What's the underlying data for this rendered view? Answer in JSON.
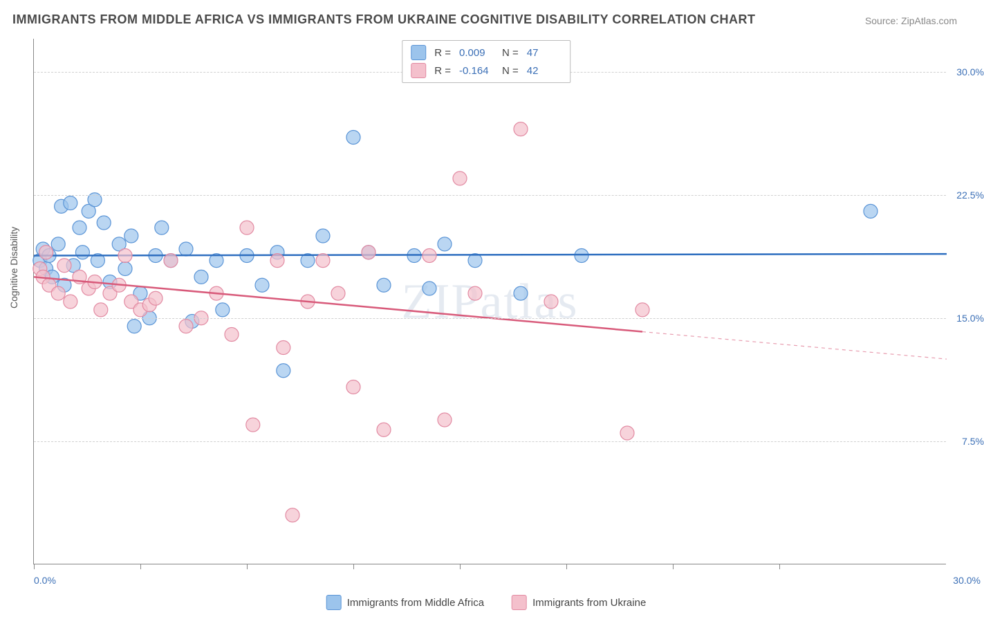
{
  "title": "IMMIGRANTS FROM MIDDLE AFRICA VS IMMIGRANTS FROM UKRAINE COGNITIVE DISABILITY CORRELATION CHART",
  "source": "Source: ZipAtlas.com",
  "watermark": "ZIPatlas",
  "y_axis_label": "Cognitive Disability",
  "chart": {
    "type": "scatter",
    "xlim": [
      0,
      30
    ],
    "ylim": [
      0,
      32
    ],
    "y_ticks": [
      7.5,
      15.0,
      22.5,
      30.0
    ],
    "y_tick_labels": [
      "7.5%",
      "15.0%",
      "22.5%",
      "30.0%"
    ],
    "x_ticks": [
      0,
      3.5,
      7,
      10.5,
      14,
      17.5,
      21,
      24.5
    ],
    "x_min_label": "0.0%",
    "x_max_label": "30.0%",
    "background_color": "#ffffff",
    "grid_color": "#d0d0d0",
    "axis_color": "#888888",
    "series": [
      {
        "name": "Immigrants from Middle Africa",
        "marker_fill": "#9cc4ec",
        "marker_stroke": "#5a94d6",
        "marker_opacity": 0.7,
        "marker_radius": 10,
        "line_color": "#2f6fc0",
        "line_width": 2.5,
        "r_value": "0.009",
        "n_value": "47",
        "regression": {
          "x1": 0,
          "y1": 18.8,
          "x2": 30,
          "y2": 18.9,
          "solid_until": 30
        },
        "points": [
          [
            0.2,
            18.5
          ],
          [
            0.3,
            19.2
          ],
          [
            0.4,
            18.0
          ],
          [
            0.5,
            18.8
          ],
          [
            0.6,
            17.5
          ],
          [
            0.8,
            19.5
          ],
          [
            0.9,
            21.8
          ],
          [
            1.0,
            17.0
          ],
          [
            1.2,
            22.0
          ],
          [
            1.3,
            18.2
          ],
          [
            1.5,
            20.5
          ],
          [
            1.6,
            19.0
          ],
          [
            1.8,
            21.5
          ],
          [
            2.0,
            22.2
          ],
          [
            2.1,
            18.5
          ],
          [
            2.3,
            20.8
          ],
          [
            2.5,
            17.2
          ],
          [
            2.8,
            19.5
          ],
          [
            3.0,
            18.0
          ],
          [
            3.2,
            20.0
          ],
          [
            3.3,
            14.5
          ],
          [
            3.5,
            16.5
          ],
          [
            3.8,
            15.0
          ],
          [
            4.0,
            18.8
          ],
          [
            4.2,
            20.5
          ],
          [
            4.5,
            18.5
          ],
          [
            5.0,
            19.2
          ],
          [
            5.2,
            14.8
          ],
          [
            5.5,
            17.5
          ],
          [
            6.0,
            18.5
          ],
          [
            6.2,
            15.5
          ],
          [
            7.0,
            18.8
          ],
          [
            7.5,
            17.0
          ],
          [
            8.0,
            19.0
          ],
          [
            8.2,
            11.8
          ],
          [
            9.0,
            18.5
          ],
          [
            9.5,
            20.0
          ],
          [
            10.5,
            26.0
          ],
          [
            11.0,
            19.0
          ],
          [
            11.5,
            17.0
          ],
          [
            12.5,
            18.8
          ],
          [
            13.0,
            16.8
          ],
          [
            13.5,
            19.5
          ],
          [
            14.5,
            18.5
          ],
          [
            16.0,
            16.5
          ],
          [
            18.0,
            18.8
          ],
          [
            27.5,
            21.5
          ]
        ]
      },
      {
        "name": "Immigrants from Ukraine",
        "marker_fill": "#f4c0cc",
        "marker_stroke": "#e28aa2",
        "marker_opacity": 0.7,
        "marker_radius": 10,
        "line_color": "#d85a7a",
        "line_width": 2.5,
        "r_value": "-0.164",
        "n_value": "42",
        "regression": {
          "x1": 0,
          "y1": 17.5,
          "x2": 30,
          "y2": 12.5,
          "solid_until": 20
        },
        "points": [
          [
            0.2,
            18.0
          ],
          [
            0.3,
            17.5
          ],
          [
            0.4,
            19.0
          ],
          [
            0.5,
            17.0
          ],
          [
            0.8,
            16.5
          ],
          [
            1.0,
            18.2
          ],
          [
            1.2,
            16.0
          ],
          [
            1.5,
            17.5
          ],
          [
            1.8,
            16.8
          ],
          [
            2.0,
            17.2
          ],
          [
            2.2,
            15.5
          ],
          [
            2.5,
            16.5
          ],
          [
            2.8,
            17.0
          ],
          [
            3.0,
            18.8
          ],
          [
            3.2,
            16.0
          ],
          [
            3.5,
            15.5
          ],
          [
            3.8,
            15.8
          ],
          [
            4.0,
            16.2
          ],
          [
            4.5,
            18.5
          ],
          [
            5.0,
            14.5
          ],
          [
            5.5,
            15.0
          ],
          [
            6.0,
            16.5
          ],
          [
            6.5,
            14.0
          ],
          [
            7.0,
            20.5
          ],
          [
            7.2,
            8.5
          ],
          [
            8.0,
            18.5
          ],
          [
            8.2,
            13.2
          ],
          [
            8.5,
            3.0
          ],
          [
            9.0,
            16.0
          ],
          [
            9.5,
            18.5
          ],
          [
            10.0,
            16.5
          ],
          [
            10.5,
            10.8
          ],
          [
            11.0,
            19.0
          ],
          [
            11.5,
            8.2
          ],
          [
            13.0,
            18.8
          ],
          [
            13.5,
            8.8
          ],
          [
            14.0,
            23.5
          ],
          [
            14.5,
            16.5
          ],
          [
            16.0,
            26.5
          ],
          [
            17.0,
            16.0
          ],
          [
            19.5,
            8.0
          ],
          [
            20.0,
            15.5
          ]
        ]
      }
    ]
  },
  "stats_legend": {
    "r_label": "R =",
    "n_label": "N ="
  }
}
